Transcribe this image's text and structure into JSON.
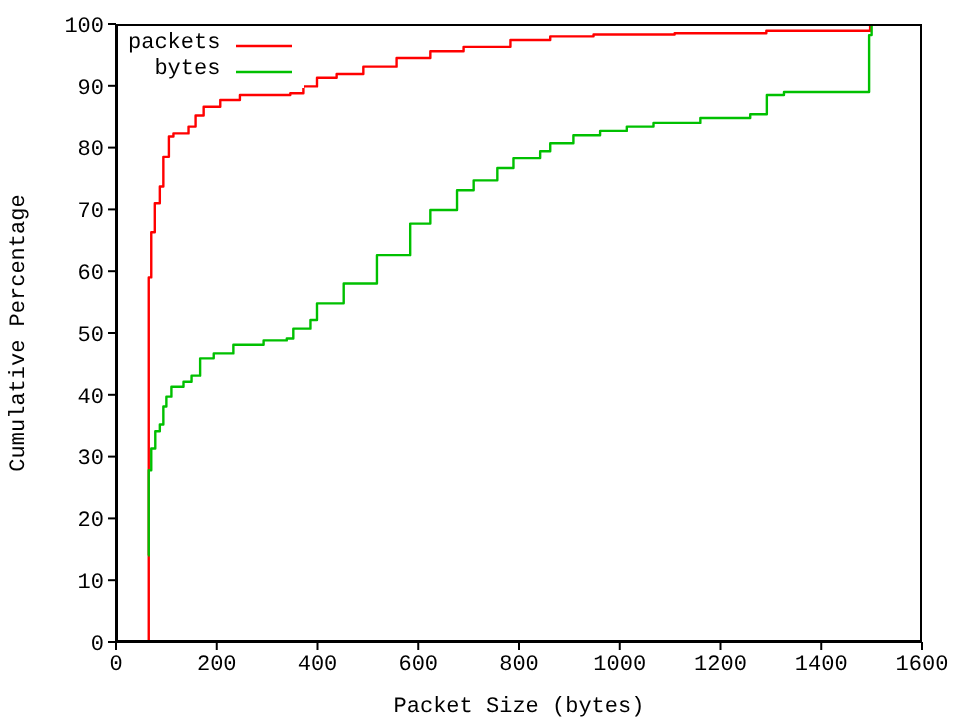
{
  "chart_data": {
    "type": "step",
    "xlabel": "Packet Size (bytes)",
    "ylabel": "Cumulative Percentage",
    "xlim": [
      0,
      1600
    ],
    "xticks": [
      0,
      200,
      400,
      600,
      800,
      1000,
      1200,
      1400,
      1600
    ],
    "ylim": [
      0,
      100
    ],
    "yticks": [
      0,
      10,
      20,
      30,
      40,
      50,
      60,
      70,
      80,
      90,
      100
    ],
    "grid": false,
    "legend": "top left",
    "marker": "none",
    "line_style": "solid",
    "series": [
      {
        "name": "packets",
        "color": "#ff0000",
        "x": [
          64,
          65,
          70,
          77,
          87,
          94,
          105,
          114,
          144,
          158,
          174,
          207,
          246,
          346,
          372,
          399,
          438,
          491,
          557,
          624,
          690,
          783,
          862,
          948,
          1109,
          1291,
          1497,
          1506
        ],
        "values": [
          0,
          59,
          66.3,
          71,
          73.7,
          78.5,
          81.8,
          82.3,
          83.4,
          85.2,
          86.6,
          87.7,
          88.5,
          88.8,
          89.9,
          91.3,
          91.9,
          93.1,
          94.5,
          95.6,
          96.3,
          97.4,
          98,
          98.3,
          98.5,
          98.9,
          100,
          100
        ]
      },
      {
        "name": "bytes",
        "color": "#00c000",
        "x": [
          64,
          65,
          70,
          78,
          87,
          94,
          100,
          110,
          134,
          150,
          167,
          194,
          233,
          293,
          339,
          352,
          386,
          399,
          452,
          518,
          584,
          624,
          677,
          710,
          757,
          789,
          842,
          862,
          908,
          961,
          1014,
          1067,
          1160,
          1259,
          1292,
          1326,
          1495,
          1500
        ],
        "values": [
          14,
          27.8,
          31.3,
          34.1,
          35.2,
          38.1,
          39.7,
          41.3,
          42.1,
          43.1,
          45.9,
          46.7,
          48.1,
          48.8,
          49.1,
          50.7,
          52.1,
          54.8,
          58,
          62.6,
          67.7,
          69.9,
          73.1,
          74.7,
          76.7,
          78.3,
          79.4,
          80.7,
          82,
          82.7,
          83.4,
          84,
          84.8,
          85.4,
          88.5,
          89,
          98.2,
          100
        ]
      }
    ]
  }
}
